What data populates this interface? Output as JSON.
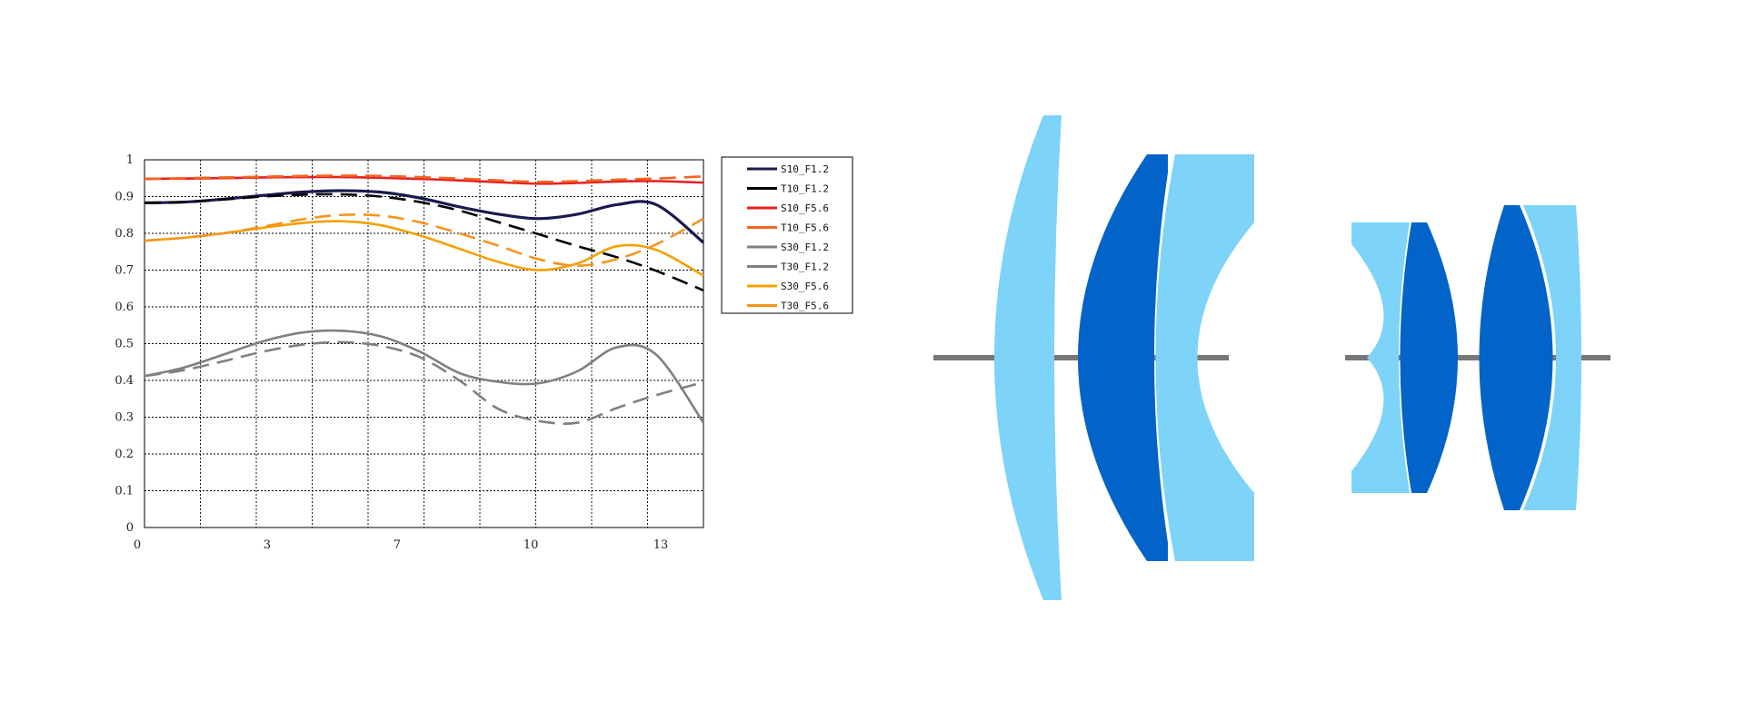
{
  "chart_data": {
    "type": "line",
    "title": "",
    "xlabel": "",
    "ylabel": "",
    "xlim": [
      0,
      14.2
    ],
    "ylim": [
      0,
      1
    ],
    "x_ticks": [
      {
        "value": 0,
        "label": "0"
      },
      {
        "value": 3.3,
        "label": "3"
      },
      {
        "value": 6.6,
        "label": "7"
      },
      {
        "value": 10,
        "label": "10"
      },
      {
        "value": 13.3,
        "label": "13"
      }
    ],
    "x_grid": [
      0,
      1.42,
      2.84,
      4.26,
      5.68,
      7.1,
      8.52,
      9.94,
      11.36,
      12.78,
      14.2
    ],
    "y_ticks": [
      {
        "value": 0,
        "label": "0"
      },
      {
        "value": 0.1,
        "label": "0.1"
      },
      {
        "value": 0.2,
        "label": "0.2"
      },
      {
        "value": 0.3,
        "label": "0.3"
      },
      {
        "value": 0.4,
        "label": "0.4"
      },
      {
        "value": 0.5,
        "label": "0.5"
      },
      {
        "value": 0.6,
        "label": "0.6"
      },
      {
        "value": 0.7,
        "label": "0.7"
      },
      {
        "value": 0.8,
        "label": "0.8"
      },
      {
        "value": 0.9,
        "label": "0.9"
      },
      {
        "value": 1,
        "label": "1"
      }
    ],
    "grid": "dotted",
    "legend_position": "right",
    "x": [
      0,
      1,
      2,
      3,
      4,
      5,
      6,
      7,
      8,
      9,
      10,
      11,
      12,
      13,
      14.2
    ],
    "series": [
      {
        "name": "S10_F1.2",
        "color": "#1a1a4e",
        "dash": "solid",
        "width": 3.2,
        "values": [
          0.883,
          0.885,
          0.893,
          0.903,
          0.912,
          0.916,
          0.912,
          0.896,
          0.872,
          0.852,
          0.84,
          0.852,
          0.878,
          0.878,
          0.775
        ]
      },
      {
        "name": "T10_F1.2",
        "color": "#000000",
        "dash": "dashed",
        "width": 2.6,
        "values": [
          0.883,
          0.885,
          0.892,
          0.9,
          0.905,
          0.906,
          0.9,
          0.885,
          0.862,
          0.83,
          0.798,
          0.765,
          0.735,
          0.698,
          0.645
        ]
      },
      {
        "name": "S10_F5.6",
        "color": "#e82020",
        "dash": "solid",
        "width": 2.6,
        "values": [
          0.948,
          0.949,
          0.95,
          0.952,
          0.953,
          0.953,
          0.951,
          0.948,
          0.944,
          0.939,
          0.935,
          0.937,
          0.941,
          0.942,
          0.938
        ]
      },
      {
        "name": "T10_F5.6",
        "color": "#f26522",
        "dash": "dashed",
        "width": 2.6,
        "values": [
          0.948,
          0.95,
          0.952,
          0.954,
          0.956,
          0.957,
          0.956,
          0.953,
          0.949,
          0.944,
          0.94,
          0.942,
          0.946,
          0.949,
          0.955
        ]
      },
      {
        "name": "S30_F1.2",
        "color": "#808080",
        "dash": "solid",
        "width": 2.6,
        "values": [
          0.412,
          0.435,
          0.47,
          0.506,
          0.53,
          0.535,
          0.52,
          0.478,
          0.42,
          0.396,
          0.392,
          0.425,
          0.49,
          0.47,
          0.285
        ]
      },
      {
        "name": "T30_F1.2",
        "color": "#808080",
        "dash": "dashed",
        "width": 2.6,
        "values": [
          0.412,
          0.428,
          0.452,
          0.478,
          0.497,
          0.504,
          0.494,
          0.463,
          0.4,
          0.322,
          0.29,
          0.285,
          0.325,
          0.36,
          0.395
        ]
      },
      {
        "name": "S30_F5.6",
        "color": "#f5a000",
        "dash": "solid",
        "width": 2.6,
        "values": [
          0.78,
          0.788,
          0.8,
          0.815,
          0.828,
          0.833,
          0.822,
          0.794,
          0.758,
          0.722,
          0.7,
          0.718,
          0.765,
          0.755,
          0.685
        ]
      },
      {
        "name": "T30_F5.6",
        "color": "#f7941d",
        "dash": "dashed",
        "width": 2.6,
        "values": [
          0.78,
          0.788,
          0.8,
          0.818,
          0.838,
          0.85,
          0.848,
          0.83,
          0.8,
          0.766,
          0.73,
          0.712,
          0.73,
          0.77,
          0.84
        ]
      }
    ]
  },
  "diagram": {
    "colors": {
      "light_lens": "#7dd3f8",
      "dark_lens": "#0264c8",
      "optical_axis": "#777777"
    }
  }
}
